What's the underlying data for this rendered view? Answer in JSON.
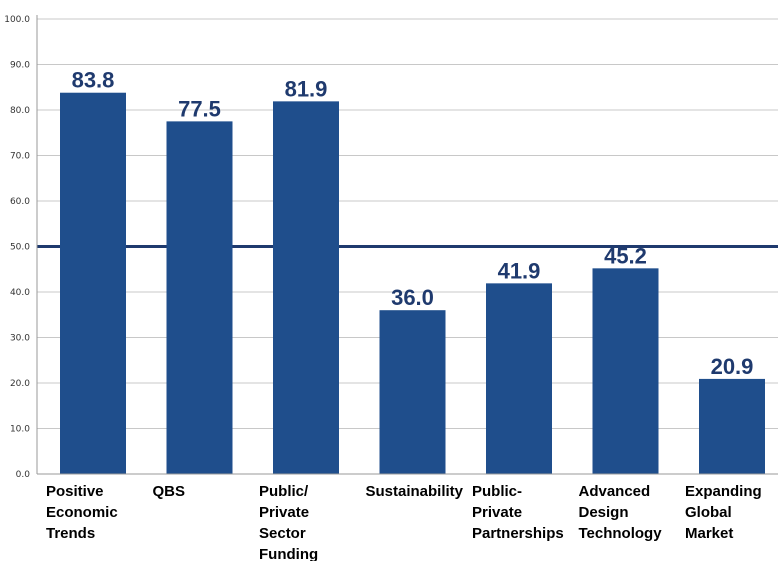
{
  "chart_data": {
    "type": "bar",
    "categories": [
      [
        "Positive",
        "Economic",
        "Trends"
      ],
      [
        "QBS"
      ],
      [
        "Public/",
        "Private",
        "Sector",
        "Funding"
      ],
      [
        "Sustainability"
      ],
      [
        "Public-",
        "Private",
        "Partnerships"
      ],
      [
        "Advanced",
        "Design",
        "Technology"
      ],
      [
        "Expanding",
        "Global",
        "Market"
      ]
    ],
    "values": [
      83.8,
      77.5,
      81.9,
      36.0,
      41.9,
      45.2,
      20.9
    ],
    "value_labels": [
      "83.8",
      "77.5",
      "81.9",
      "36.0",
      "41.9",
      "45.2",
      "20.9"
    ],
    "yticks": [
      "0.0",
      "10.0",
      "20.0",
      "30.0",
      "40.0",
      "50.0",
      "60.0",
      "70.0",
      "80.0",
      "90.0",
      "100.0"
    ],
    "ylim": [
      0,
      100
    ],
    "reference_line": 50,
    "grid": true,
    "colors": {
      "bar": "#1F4E8C",
      "value_text": "#1F3A6E",
      "reference_line": "#1F3A6E",
      "grid": "#C8C8C8",
      "axis": "#9A9A9A"
    }
  }
}
